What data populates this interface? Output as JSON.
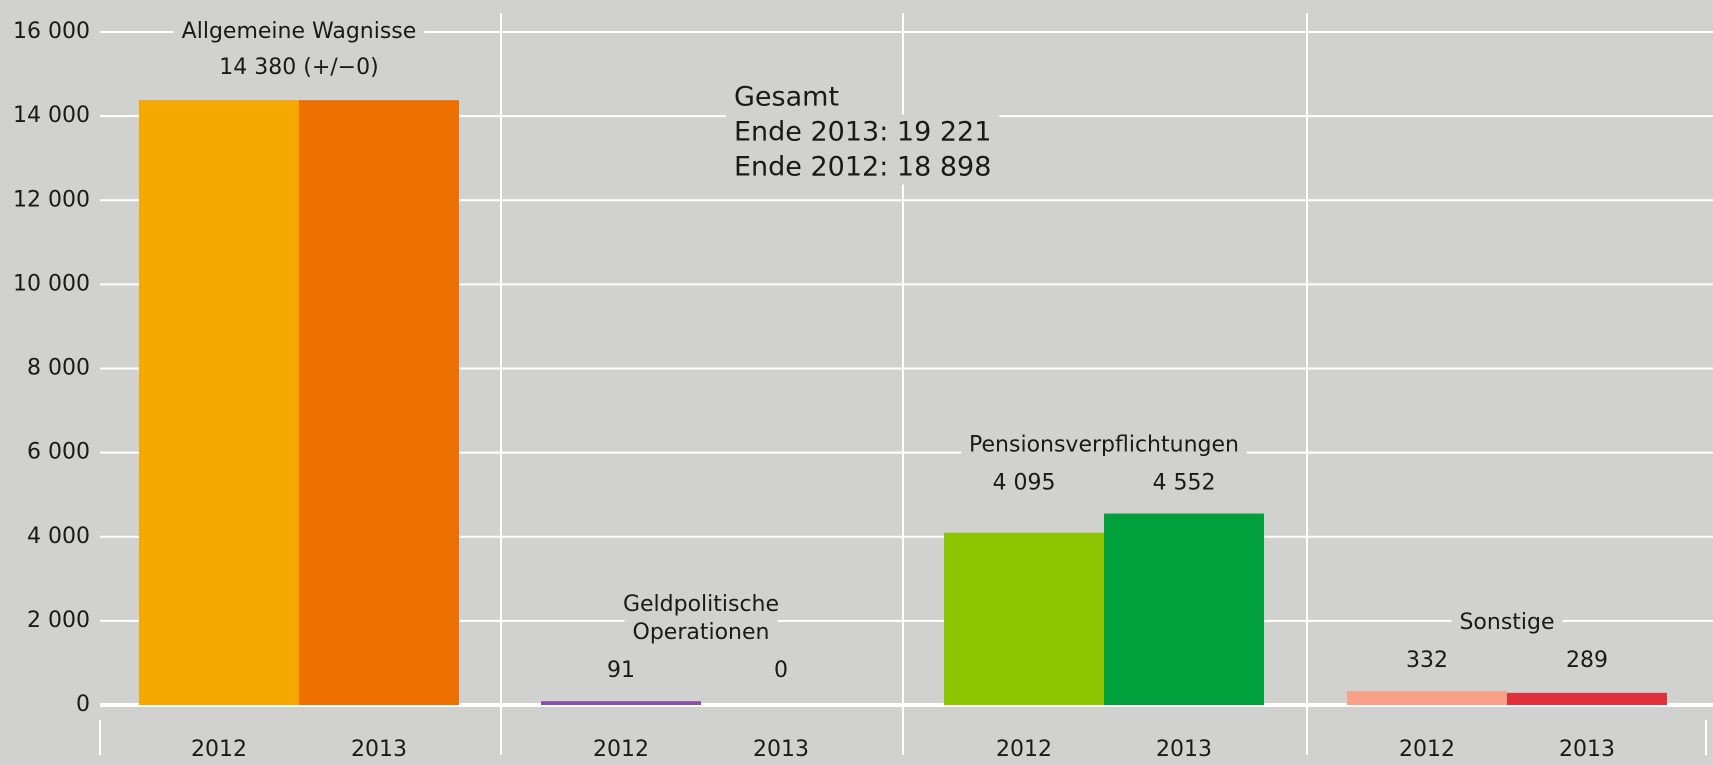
{
  "chart_data": {
    "type": "bar",
    "ylim": [
      0,
      16000
    ],
    "yticks": [
      0,
      {
        "value": 2000,
        "label": "2 000"
      },
      {
        "value": 4000,
        "label": "4 000"
      },
      {
        "value": 6000,
        "label": "6 000"
      },
      {
        "value": 8000,
        "label": "8 000"
      },
      {
        "value": 10000,
        "label": "10 000"
      },
      {
        "value": 12000,
        "label": "12 000"
      },
      {
        "value": 14000,
        "label": "14 000"
      },
      {
        "value": 16000,
        "label": "16 000"
      }
    ],
    "grid": true,
    "groups": [
      {
        "name": [
          "Allgemeine Wagnisse"
        ],
        "categories": [
          "2012",
          "2013"
        ],
        "values": [
          14380,
          14380
        ],
        "colors": [
          "#f5a800",
          "#ee7000"
        ],
        "combined_value_label": "14 380 (+/−0)"
      },
      {
        "name": [
          "Geldpolitische",
          "Operationen"
        ],
        "categories": [
          "2012",
          "2013"
        ],
        "values": [
          91,
          0
        ],
        "colors": [
          "#8a4fa8",
          "#6a2f88"
        ],
        "value_labels": [
          "91",
          "0"
        ]
      },
      {
        "name": [
          "Pensionsverpflichtungen"
        ],
        "categories": [
          "2012",
          "2013"
        ],
        "values": [
          4095,
          4552
        ],
        "colors": [
          "#8dc500",
          "#00a03c"
        ],
        "value_labels": [
          "4 095",
          "4 552"
        ]
      },
      {
        "name": [
          "Sonstige"
        ],
        "categories": [
          "2012",
          "2013"
        ],
        "values": [
          332,
          289
        ],
        "colors": [
          "#f9a088",
          "#e0303a"
        ],
        "value_labels": [
          "332",
          "289"
        ]
      }
    ],
    "annotation": [
      "Gesamt",
      "Ende 2013: 19 221",
      "Ende 2012: 18 898"
    ]
  }
}
